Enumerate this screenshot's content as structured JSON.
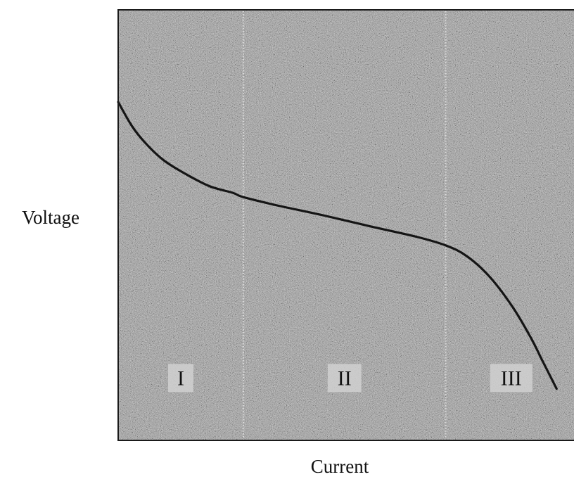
{
  "chart_data": {
    "type": "line",
    "title": "",
    "xlabel": "Current",
    "ylabel": "Voltage",
    "xlim": [
      0,
      100
    ],
    "ylim": [
      0,
      100
    ],
    "grid": false,
    "axis_ticks": false,
    "regions": [
      {
        "label": "I",
        "x_range": [
          0,
          27.3
        ]
      },
      {
        "label": "II",
        "x_range": [
          27.3,
          71.4
        ]
      },
      {
        "label": "III",
        "x_range": [
          71.4,
          100
        ]
      }
    ],
    "series": [
      {
        "x": [
          0,
          3,
          6,
          10,
          15,
          20,
          25,
          27.3,
          35,
          45,
          55,
          65,
          71.4,
          76,
          81,
          86,
          90,
          92.5,
          95.6
        ],
        "y": [
          78.6,
          73,
          69,
          65,
          61.7,
          59,
          57.5,
          56.5,
          54.5,
          52.2,
          49.7,
          47.3,
          45.3,
          42.8,
          38,
          31,
          23.8,
          18.5,
          12
        ]
      }
    ],
    "colors": {
      "plot_background": "#8f8f8f",
      "curve": "#151515",
      "divider": "#d9d9d9",
      "label_box": "#d0d0d0"
    }
  }
}
